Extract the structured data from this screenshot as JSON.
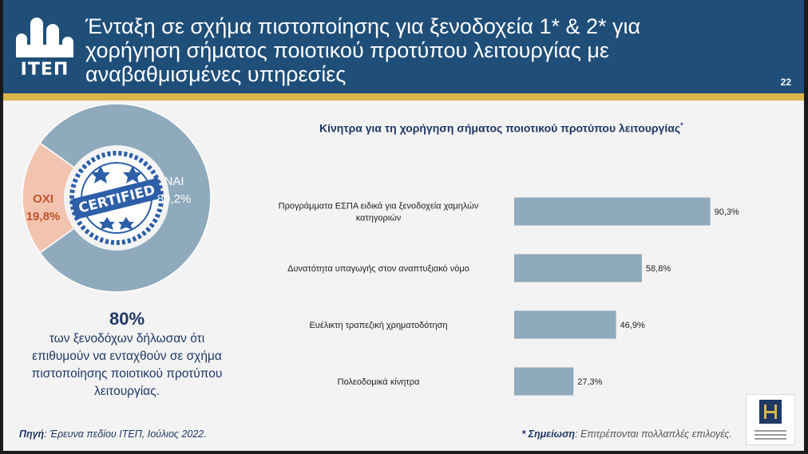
{
  "header": {
    "logo_text": "ΙΤΕΠ",
    "title": "Ένταξη σε σχήμα πιστοποίησης για ξενοδοχεία 1* & 2* για χορήγηση σήματος ποιοτικού προτύπου λειτουργίας με αναβαθμισμένες υπηρεσίες",
    "page_number": "22"
  },
  "donut": {
    "badge_text": "CERTIFIED",
    "slices": [
      {
        "label": "ΝΑΙ",
        "value_text": "80,2%",
        "value": 80.2,
        "color": "#8faabc"
      },
      {
        "label": "ΟΧΙ",
        "value_text": "19,8%",
        "value": 19.8,
        "color": "#f2c4b0"
      }
    ],
    "label_colors": {
      "yes": "#ffffff",
      "no": "#c0532a"
    }
  },
  "summary": {
    "big": "80%",
    "text": "των ξενοδόχων δήλωσαν ότι επιθυμούν να ενταχθούν σε σχήμα πιστοποίησης ποιοτικού προτύπου λειτουργίας."
  },
  "chart_data": {
    "type": "bar",
    "orientation": "horizontal",
    "title": "Κίνητρα για τη χορήγηση σήματος ποιοτικού προτύπου λειτουργίας",
    "title_mark": "*",
    "categories": [
      "Προγράμματα ΕΣΠΑ ειδικά για ξενοδοχεία χαμηλών κατηγοριών",
      "Δυνατότητα υπαγωγής στον αναπτυξιακό νόμο",
      "Ευέλικτη τραπεζική χρηματοδότηση",
      "Πολεοδομικά κίνητρα"
    ],
    "values": [
      90.3,
      58.8,
      46.9,
      27.3
    ],
    "value_labels": [
      "90,3%",
      "58,8%",
      "46,9%",
      "27,3%"
    ],
    "xlim": [
      0,
      100
    ],
    "bar_color": "#8faabc",
    "grid": false,
    "legend": "none"
  },
  "footer": {
    "source_label": "Πηγή",
    "source_text": ": Έρευνα πεδίου ΙΤΕΠ, Ιούλιος 2022.",
    "note_prefix": "* ",
    "note_label": "Σημείωση",
    "note_text": ": Επιτρέπονται πολλαπλές επιλογές."
  }
}
